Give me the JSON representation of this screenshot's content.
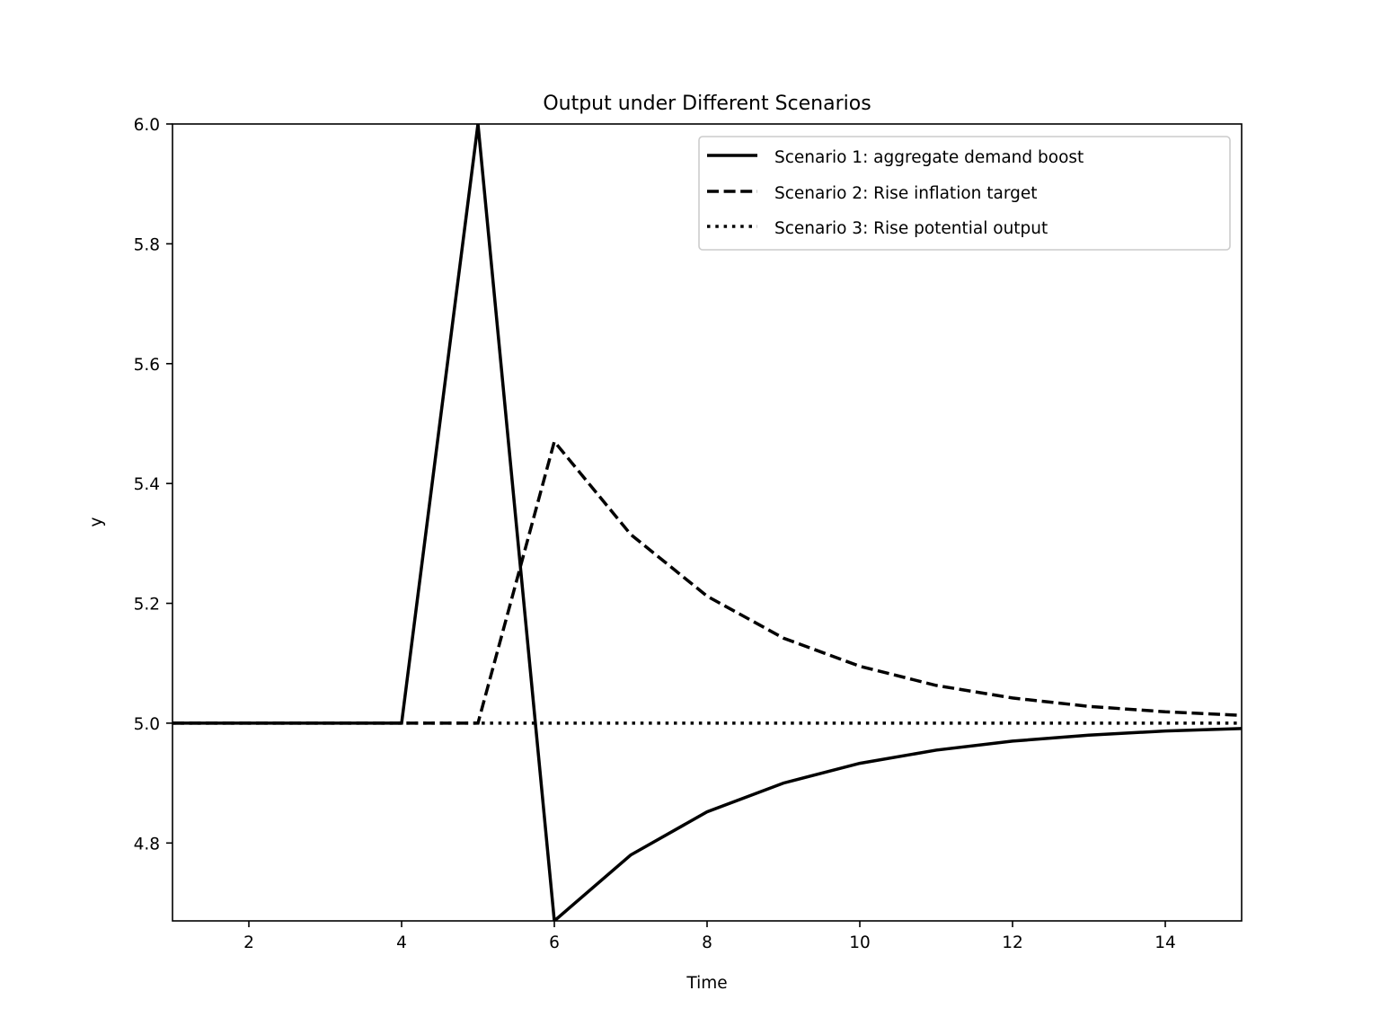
{
  "chart_data": {
    "type": "line",
    "title": "Output under Different Scenarios",
    "xlabel": "Time",
    "ylabel": "y",
    "xlim": [
      1,
      15
    ],
    "ylim": [
      4.67,
      6.0
    ],
    "xticks": [
      2,
      4,
      6,
      8,
      10,
      12,
      14
    ],
    "xtick_labels": [
      "2",
      "4",
      "6",
      "8",
      "10",
      "12",
      "14"
    ],
    "yticks": [
      4.8,
      5.0,
      5.2,
      5.4,
      5.6,
      5.8,
      6.0
    ],
    "ytick_labels": [
      "4.8",
      "5.0",
      "5.2",
      "5.4",
      "5.6",
      "5.8",
      "6.0"
    ],
    "grid": false,
    "legend_position": "top-right",
    "x": [
      1,
      2,
      3,
      4,
      5,
      6,
      7,
      8,
      9,
      10,
      11,
      12,
      13,
      14,
      15
    ],
    "series": [
      {
        "name": "Scenario 1: aggregate demand boost",
        "style": "solid",
        "color": "#000000",
        "values": [
          5.0,
          5.0,
          5.0,
          5.0,
          6.0,
          4.67,
          4.78,
          4.852,
          4.9,
          4.933,
          4.955,
          4.97,
          4.98,
          4.987,
          4.991
        ]
      },
      {
        "name": "Scenario 2: Rise inflation target",
        "style": "dashed",
        "color": "#000000",
        "values": [
          5.0,
          5.0,
          5.0,
          5.0,
          5.0,
          5.47,
          5.315,
          5.212,
          5.142,
          5.095,
          5.063,
          5.042,
          5.028,
          5.019,
          5.013
        ]
      },
      {
        "name": "Scenario 3: Rise potential output",
        "style": "dotted",
        "color": "#000000",
        "values": [
          5.0,
          5.0,
          5.0,
          5.0,
          5.0,
          5.0,
          5.0,
          5.0,
          5.0,
          5.0,
          5.0,
          5.0,
          5.0,
          5.0,
          5.0
        ]
      }
    ]
  }
}
